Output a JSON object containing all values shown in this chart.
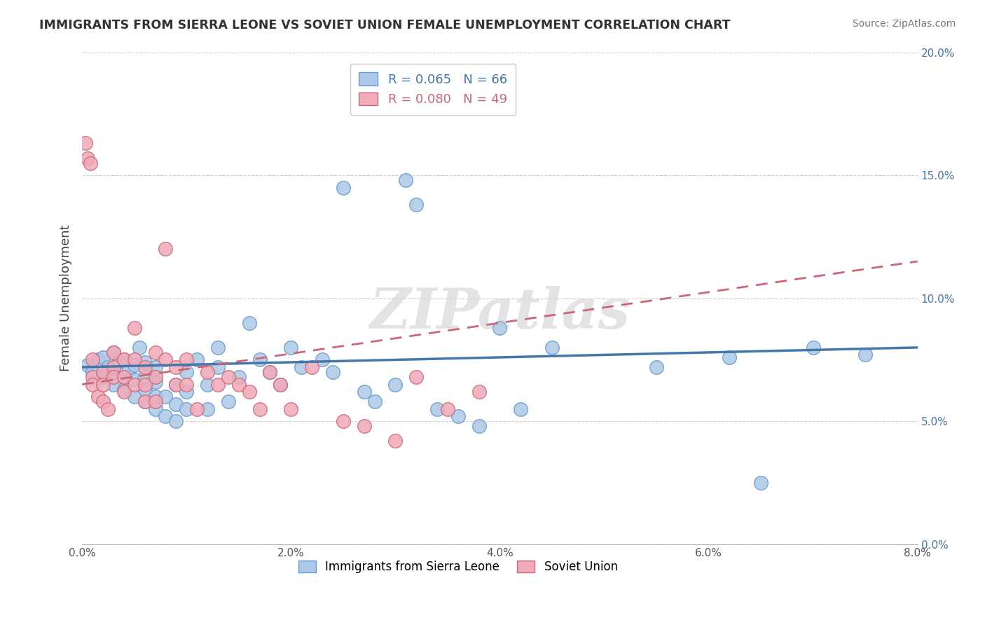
{
  "title": "IMMIGRANTS FROM SIERRA LEONE VS SOVIET UNION FEMALE UNEMPLOYMENT CORRELATION CHART",
  "source": "Source: ZipAtlas.com",
  "ylabel": "Female Unemployment",
  "xlim": [
    0.0,
    0.08
  ],
  "ylim": [
    0.0,
    0.2
  ],
  "xticks": [
    0.0,
    0.02,
    0.04,
    0.06,
    0.08
  ],
  "xticklabels": [
    "0.0%",
    "2.0%",
    "4.0%",
    "6.0%",
    "8.0%"
  ],
  "yticks": [
    0.0,
    0.05,
    0.1,
    0.15,
    0.2
  ],
  "yticklabels": [
    "0.0%",
    "5.0%",
    "10.0%",
    "15.0%",
    "20.0%"
  ],
  "series_blue": {
    "label": "Immigrants from Sierra Leone",
    "color": "#adc8e8",
    "edge_color": "#6699cc",
    "R": 0.065,
    "N": 66,
    "trend_color": "#4477aa",
    "trend_x": [
      0.0,
      0.08
    ],
    "trend_y": [
      0.072,
      0.08
    ]
  },
  "series_pink": {
    "label": "Soviet Union",
    "color": "#f0aab8",
    "edge_color": "#cc6677",
    "R": 0.08,
    "N": 49,
    "trend_color": "#cc6677",
    "trend_x": [
      0.0,
      0.08
    ],
    "trend_y": [
      0.065,
      0.115
    ]
  },
  "watermark": "ZIPatlas",
  "background_color": "#ffffff",
  "grid_color": "#d0d0d0",
  "title_color": "#333333",
  "blue_scatter_x": [
    0.0005,
    0.001,
    0.0015,
    0.002,
    0.002,
    0.0025,
    0.003,
    0.003,
    0.003,
    0.0035,
    0.004,
    0.004,
    0.004,
    0.0045,
    0.005,
    0.005,
    0.005,
    0.0055,
    0.006,
    0.006,
    0.006,
    0.006,
    0.007,
    0.007,
    0.007,
    0.007,
    0.008,
    0.008,
    0.009,
    0.009,
    0.009,
    0.01,
    0.01,
    0.01,
    0.011,
    0.012,
    0.012,
    0.013,
    0.013,
    0.014,
    0.015,
    0.016,
    0.017,
    0.018,
    0.019,
    0.02,
    0.021,
    0.023,
    0.024,
    0.025,
    0.027,
    0.028,
    0.03,
    0.031,
    0.032,
    0.034,
    0.036,
    0.038,
    0.04,
    0.042,
    0.045,
    0.055,
    0.062,
    0.065,
    0.07,
    0.075
  ],
  "blue_scatter_y": [
    0.073,
    0.07,
    0.075,
    0.068,
    0.076,
    0.072,
    0.065,
    0.07,
    0.078,
    0.074,
    0.063,
    0.068,
    0.075,
    0.071,
    0.06,
    0.067,
    0.073,
    0.08,
    0.058,
    0.063,
    0.068,
    0.074,
    0.055,
    0.06,
    0.066,
    0.072,
    0.052,
    0.06,
    0.05,
    0.057,
    0.065,
    0.055,
    0.062,
    0.07,
    0.075,
    0.055,
    0.065,
    0.072,
    0.08,
    0.058,
    0.068,
    0.09,
    0.075,
    0.07,
    0.065,
    0.08,
    0.072,
    0.075,
    0.07,
    0.145,
    0.062,
    0.058,
    0.065,
    0.148,
    0.138,
    0.055,
    0.052,
    0.048,
    0.088,
    0.055,
    0.08,
    0.072,
    0.076,
    0.025,
    0.08,
    0.077
  ],
  "pink_scatter_x": [
    0.0003,
    0.0005,
    0.0008,
    0.001,
    0.001,
    0.001,
    0.0015,
    0.002,
    0.002,
    0.002,
    0.0025,
    0.003,
    0.003,
    0.003,
    0.004,
    0.004,
    0.004,
    0.005,
    0.005,
    0.005,
    0.006,
    0.006,
    0.006,
    0.007,
    0.007,
    0.007,
    0.008,
    0.008,
    0.009,
    0.009,
    0.01,
    0.01,
    0.011,
    0.012,
    0.013,
    0.014,
    0.015,
    0.016,
    0.017,
    0.018,
    0.019,
    0.02,
    0.022,
    0.025,
    0.027,
    0.03,
    0.032,
    0.035,
    0.038
  ],
  "pink_scatter_y": [
    0.163,
    0.157,
    0.155,
    0.075,
    0.068,
    0.065,
    0.06,
    0.07,
    0.065,
    0.058,
    0.055,
    0.078,
    0.072,
    0.068,
    0.075,
    0.068,
    0.062,
    0.088,
    0.075,
    0.065,
    0.072,
    0.065,
    0.058,
    0.078,
    0.068,
    0.058,
    0.12,
    0.075,
    0.072,
    0.065,
    0.075,
    0.065,
    0.055,
    0.07,
    0.065,
    0.068,
    0.065,
    0.062,
    0.055,
    0.07,
    0.065,
    0.055,
    0.072,
    0.05,
    0.048,
    0.042,
    0.068,
    0.055,
    0.062
  ]
}
